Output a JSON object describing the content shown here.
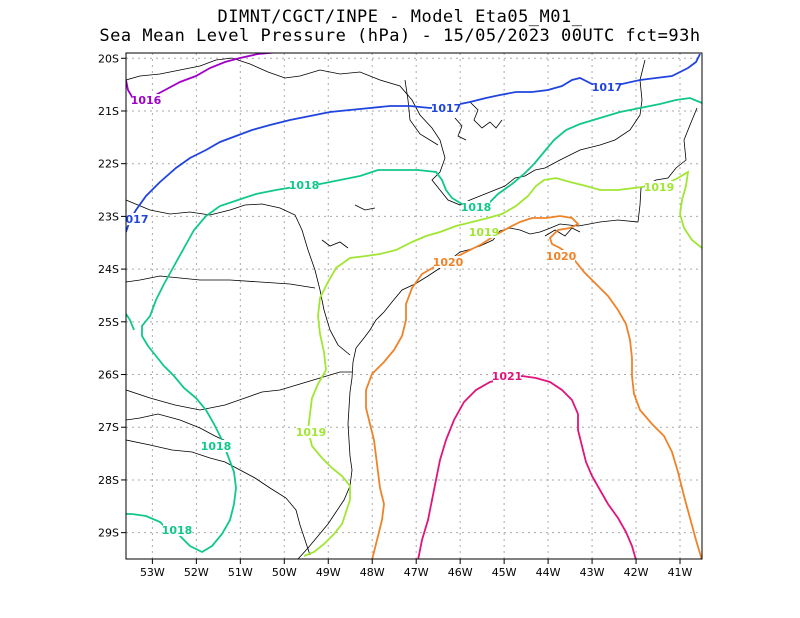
{
  "title": {
    "line1": "DIMNT/CGCT/INPE -  Model Eta05_M01_",
    "line2": "Sea Mean Level Pressure (hPa) - 15/05/2023 00UTC fct=93h"
  },
  "colors": {
    "c1016": "#a000c8",
    "c1017": "#2044e0",
    "c1018": "#10c888",
    "c1019": "#a0e632",
    "c1020": "#f08228",
    "c1021": "#e0147c",
    "coast": "#000000",
    "grid": "#aaaaaa"
  },
  "map": {
    "lon_range": [
      -53.6,
      -40.5
    ],
    "lat_range": [
      -29.5,
      -19.9
    ],
    "x_ticks": [
      "53W",
      "52W",
      "51W",
      "50W",
      "49W",
      "48W",
      "47W",
      "46W",
      "45W",
      "44W",
      "43W",
      "42W",
      "41W"
    ],
    "y_ticks": [
      "20S",
      "21S",
      "22S",
      "23S",
      "24S",
      "25S",
      "26S",
      "27S",
      "28S",
      "29S"
    ],
    "contour_labels": {
      "l1016": "1016",
      "l1017a": "1017",
      "l1017b": "1017",
      "l1017c": "017",
      "l1018a": "1018",
      "l1018b": "1018",
      "l1018c": "1018",
      "l1018d": "1018",
      "l1019a": "1019",
      "l1019b": "1019",
      "l1019c": "1019",
      "l1020a": "1020",
      "l1020b": "1020",
      "l1021": "1021"
    }
  }
}
